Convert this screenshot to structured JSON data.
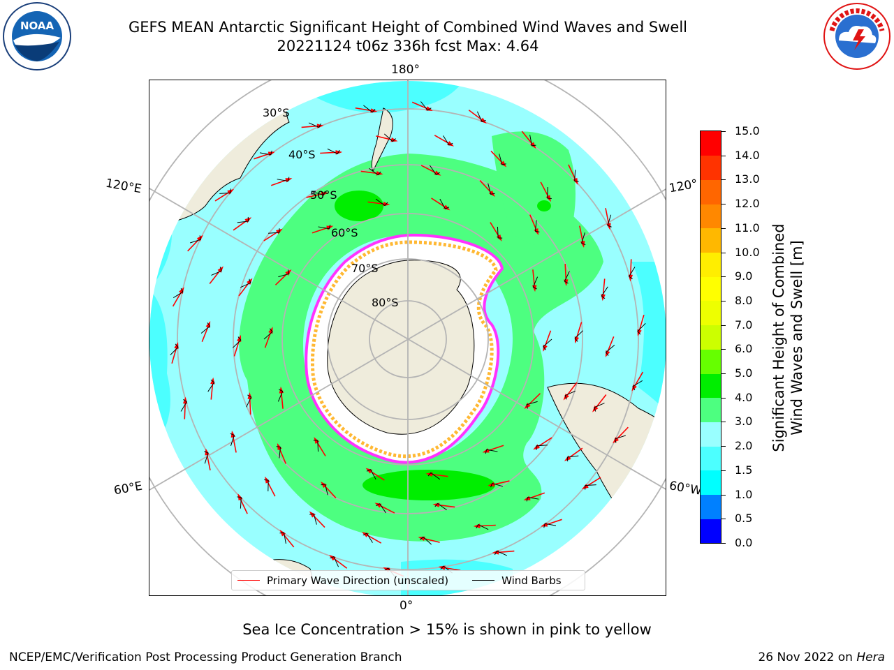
{
  "header": {
    "title_line1": "GEFS MEAN Antarctic Significant Height of Combined Wind Waves and Swell",
    "title_line2": "20221124 t06z 336h fcst   Max: 4.64"
  },
  "logos": {
    "left": {
      "icon": "noaa-logo-icon",
      "text": "NOAA",
      "ring_text": "NATIONAL OCEANIC AND ATMOSPHERIC ADMINISTRATION · U.S. DEPARTMENT OF COMMERCE"
    },
    "right": {
      "icon": "nws-logo-icon",
      "ring_text": "NATIONAL WEATHER SERVICE"
    }
  },
  "map": {
    "projection": "south-polar-stereographic",
    "longitude_labels": {
      "top": "180°",
      "bottom": "0°",
      "left_upper": "120°E",
      "left_lower": "60°E",
      "right_upper": "120°",
      "right_lower": "60°W"
    },
    "latitude_labels": [
      "30°S",
      "40°S",
      "50°S",
      "60°S",
      "70°S",
      "80°S"
    ],
    "colors": {
      "ocean_low": "#99ffff",
      "ocean_mid": "#4cffff",
      "band_3_4": "#4dff80",
      "band_4_5": "#00ee00",
      "land": "#efecdc",
      "ice_edge_pink": "#ff33ff",
      "ice_edge_orange": "#ffb833",
      "graticule": "#b4b4b4"
    }
  },
  "legend": {
    "items": [
      {
        "label": "Primary Wave Direction (unscaled)",
        "color": "#ff0000"
      },
      {
        "label": "Wind Barbs",
        "color": "#000000"
      }
    ]
  },
  "colorbar": {
    "label_line1": "Significant Height of Combined",
    "label_line2": "Wind Waves and Swell [m]",
    "ticks": [
      "0.0",
      "0.5",
      "1.0",
      "1.5",
      "2.0",
      "3.0",
      "4.0",
      "5.0",
      "6.0",
      "7.0",
      "8.0",
      "9.0",
      "10.0",
      "11.0",
      "12.0",
      "13.0",
      "14.0",
      "15.0"
    ],
    "colors": [
      "#0000ff",
      "#0080ff",
      "#00ffff",
      "#4cffff",
      "#99ffff",
      "#4dff80",
      "#00ee00",
      "#66ff00",
      "#ccff00",
      "#eeff00",
      "#ffff00",
      "#ffee00",
      "#ffb800",
      "#ff8800",
      "#ff6600",
      "#ff3300",
      "#ff0000"
    ]
  },
  "notes": {
    "sea_ice": "Sea Ice Concentration > 15% is shown in pink to yellow"
  },
  "footer": {
    "left": "NCEP/EMC/Verification Post Processing Product Generation Branch",
    "right_prefix": "26 Nov 2022 on ",
    "right_host": "Hera"
  }
}
